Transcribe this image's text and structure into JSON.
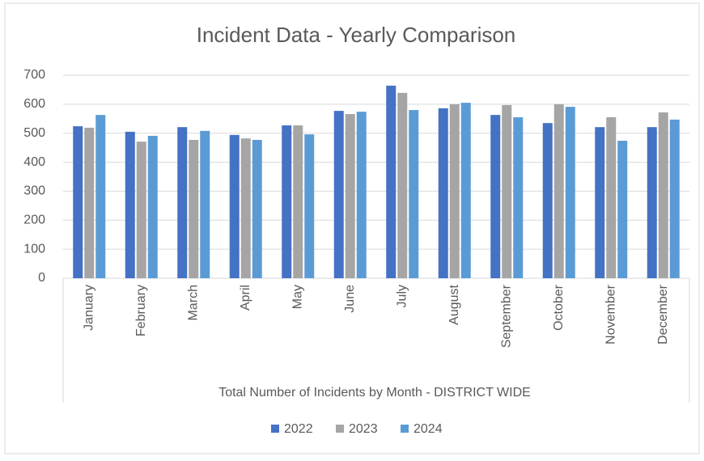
{
  "chart_data": {
    "type": "bar",
    "title": "Incident Data - Yearly Comparison",
    "x_label": "Total Number of Incidents by Month - DISTRICT WIDE",
    "categories": [
      "January",
      "February",
      "March",
      "April",
      "May",
      "June",
      "July",
      "August",
      "September",
      "October",
      "November",
      "December"
    ],
    "series": [
      {
        "name": "2022",
        "color": "#4472c4",
        "values": [
          524,
          505,
          521,
          494,
          527,
          577,
          664,
          586,
          563,
          535,
          521,
          521
        ]
      },
      {
        "name": "2023",
        "color": "#a5a5a5",
        "values": [
          519,
          471,
          477,
          482,
          527,
          566,
          639,
          600,
          597,
          600,
          555,
          572
        ]
      },
      {
        "name": "2024",
        "color": "#5b9bd5",
        "values": [
          563,
          491,
          508,
          477,
          496,
          574,
          580,
          605,
          555,
          591,
          474,
          547
        ]
      }
    ],
    "ylim": [
      0,
      700
    ],
    "yticks": [
      0,
      100,
      200,
      300,
      400,
      500,
      600,
      700
    ],
    "grid": true,
    "legend": "bottom"
  }
}
